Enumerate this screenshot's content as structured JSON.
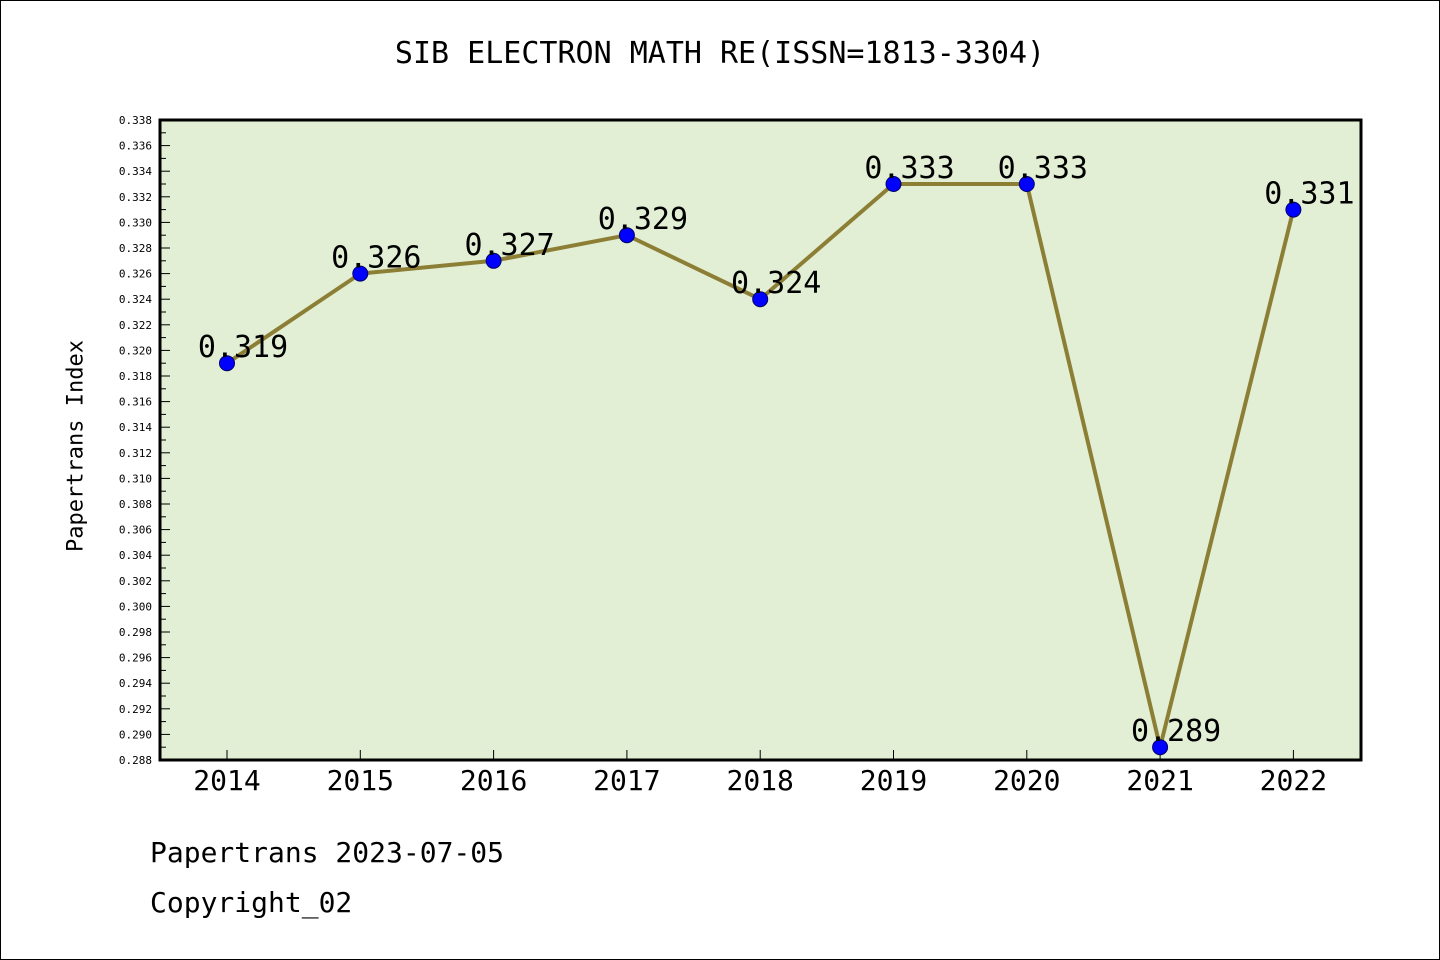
{
  "chart_data": {
    "type": "line",
    "title": "SIB ELECTRON MATH RE(ISSN=1813-3304)",
    "xlabel": "",
    "ylabel": "Papertrans Index",
    "categories": [
      "2014",
      "2015",
      "2016",
      "2017",
      "2018",
      "2019",
      "2020",
      "2021",
      "2022"
    ],
    "series": [
      {
        "values": [
          0.319,
          0.326,
          0.327,
          0.329,
          0.324,
          0.333,
          0.333,
          0.289,
          0.331
        ],
        "data_labels": [
          "0.319",
          "0.326",
          "0.327",
          "0.329",
          "0.324",
          "0.333",
          "0.333",
          "0.289",
          "0.331"
        ]
      }
    ],
    "ylim": [
      0.288,
      0.338
    ],
    "ytick_step": 0.002,
    "yticks": [
      "0.288",
      "0.290",
      "0.292",
      "0.294",
      "0.296",
      "0.298",
      "0.300",
      "0.302",
      "0.304",
      "0.306",
      "0.308",
      "0.310",
      "0.312",
      "0.314",
      "0.316",
      "0.318",
      "0.320",
      "0.322",
      "0.324",
      "0.326",
      "0.328",
      "0.330",
      "0.332",
      "0.334",
      "0.336",
      "0.338"
    ],
    "grid": false,
    "legend": "none",
    "colors": {
      "plot_background": "#e2efd5",
      "line": "#8c7f35",
      "marker": "#0000ff"
    }
  },
  "footer": {
    "line1": "Papertrans 2023-07-05",
    "line2": "Copyright_02"
  }
}
